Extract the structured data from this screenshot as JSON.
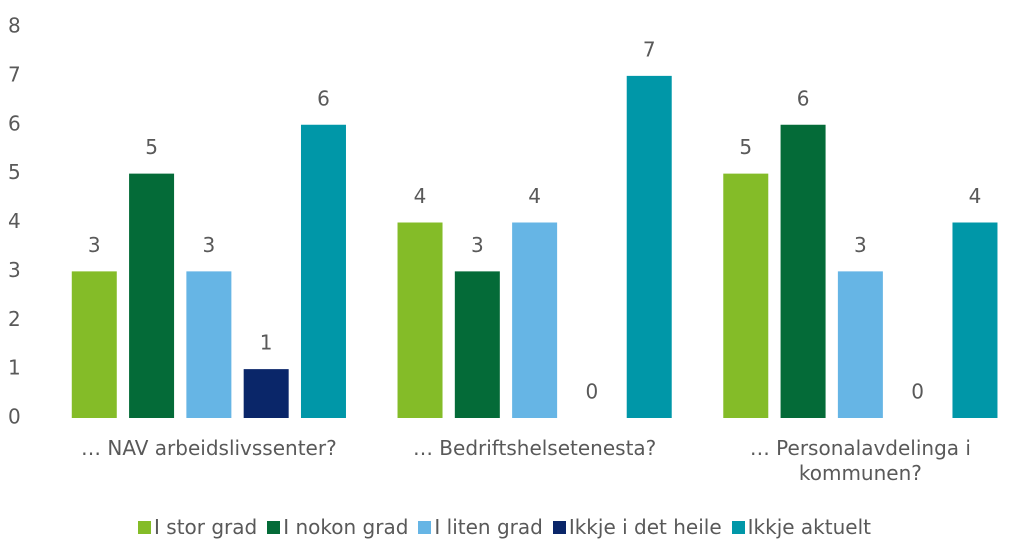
{
  "chart_data": {
    "type": "bar",
    "categories": [
      "… NAV arbeidslivssenter?",
      "… Bedriftshelsetenesta?",
      "… Personalavdelinga i kommunen?"
    ],
    "series": [
      {
        "name": "I stor grad",
        "color": "#84bc28",
        "values": [
          3,
          4,
          5
        ]
      },
      {
        "name": "I nokon grad",
        "color": "#046b38",
        "values": [
          5,
          3,
          6
        ]
      },
      {
        "name": "I liten grad",
        "color": "#66b5e5",
        "values": [
          3,
          4,
          3
        ]
      },
      {
        "name": "Ikkje i det heile",
        "color": "#0a2669",
        "values": [
          1,
          0,
          0
        ]
      },
      {
        "name": "Ikkje aktuelt",
        "color": "#0097a8",
        "values": [
          6,
          7,
          4
        ]
      }
    ],
    "ylim": [
      0,
      8
    ],
    "yticks": [
      0,
      1,
      2,
      3,
      4,
      5,
      6,
      7,
      8
    ],
    "grid": false,
    "legend": "bottom"
  }
}
